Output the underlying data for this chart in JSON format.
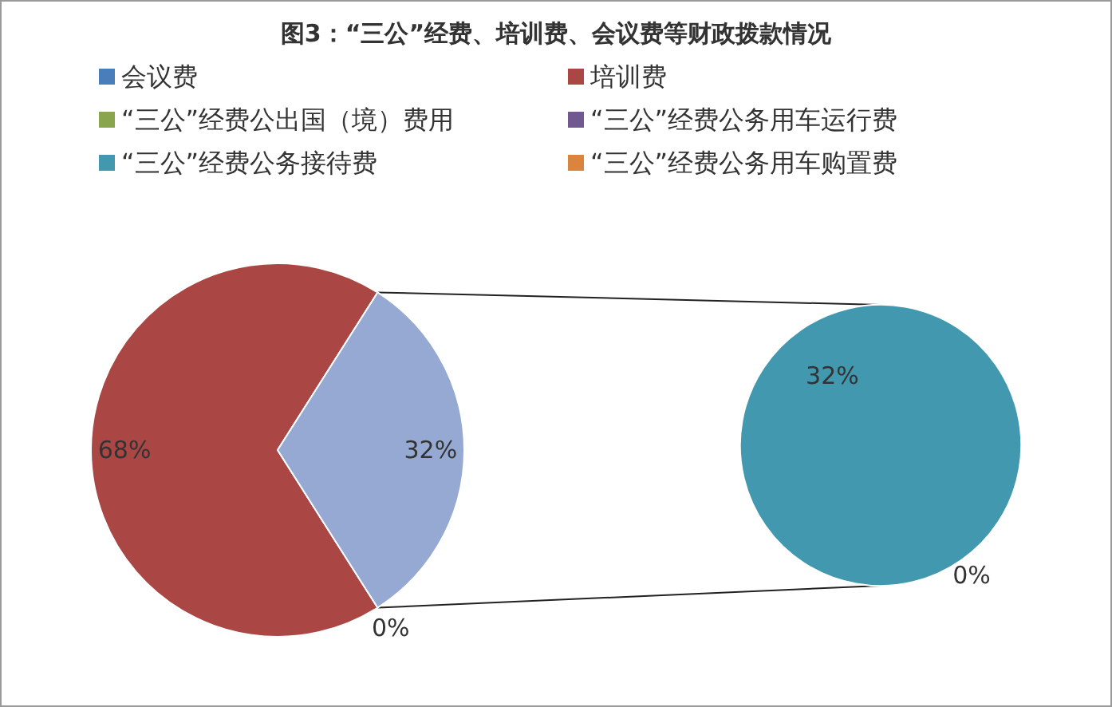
{
  "chart_data": [
    {
      "type": "pie",
      "title": "图3：“三公”经费、培训费、会议费等财政拨款情况",
      "categories": [
        "会议费",
        "培训费",
        null
      ],
      "values": [
        0,
        68,
        32
      ],
      "colors": [
        "#4a7ebb",
        "#aa4643",
        "#95a9d3"
      ],
      "value_labels": [
        "0%",
        "68%",
        "32%"
      ],
      "legend": "top"
    },
    {
      "type": "pie",
      "categories": [
        "“三公”经费公出国（境）费用",
        "“三公”经费公务用车运行费",
        "“三公”经费公务接待费",
        "“三公”经费公务用车购置费"
      ],
      "values": [
        0,
        0,
        32,
        0
      ],
      "colors": [
        "#89a54e",
        "#71588f",
        "#4198af",
        "#db843d"
      ],
      "value_labels": [
        null,
        null,
        "32%",
        "0%"
      ],
      "legend": "top"
    }
  ]
}
